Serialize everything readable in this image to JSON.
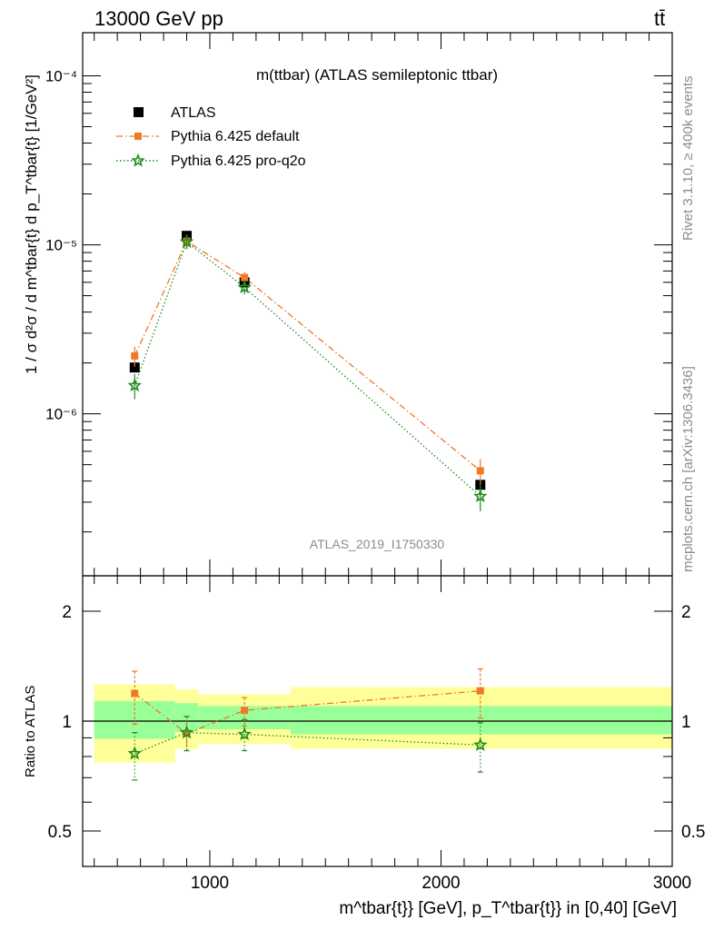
{
  "header": {
    "energy_label": "13000 GeV pp",
    "process_label": "tt̄"
  },
  "side_labels": {
    "rivet": "Rivet 3.1.10, ≥ 400k events",
    "source": "mcplots.cern.ch [arXiv:1306.3436]"
  },
  "chart_data": [
    {
      "type": "scatter",
      "title": "m(ttbar) (ATLAS semileptonic ttbar)",
      "analysis_id": "ATLAS_2019_I1750330",
      "xscale": "linear",
      "yscale": "log",
      "xlim": [
        450,
        3000
      ],
      "ylim": [
        1.1e-07,
        0.00018
      ],
      "ylabel": "1 / σ d²σ / d m^tbar{t} d p_T^tbar{t} [1/GeV²]",
      "y_tick_labels": [
        "10⁻⁶",
        "10⁻⁵",
        "10⁻⁴"
      ],
      "y_tick_values": [
        1e-06,
        1e-05,
        0.0001
      ],
      "legend_position": "top-left",
      "series": [
        {
          "name": "ATLAS",
          "color": "#000000",
          "marker": "square",
          "x": [
            675,
            900,
            1150,
            2170
          ],
          "y": [
            1.88e-06,
            1.13e-05,
            6e-06,
            3.8e-07
          ],
          "yerr": [
            8e-08,
            4e-07,
            3e-07,
            2e-08
          ],
          "band_x": [
            [
              500,
              850
            ],
            [
              850,
              950
            ],
            [
              950,
              1350
            ],
            [
              1350,
              3000
            ]
          ]
        },
        {
          "name": "Pythia 6.425 default",
          "color": "#f07828",
          "marker": "square-small",
          "line": "dashdot",
          "x": [
            675,
            900,
            1150,
            2170
          ],
          "y": [
            2.2e-06,
            1.05e-05,
            6.4e-06,
            4.6e-07
          ],
          "yerr": [
            3e-07,
            1e-06,
            5e-07,
            8e-08
          ]
        },
        {
          "name": "Pythia 6.425 pro-q2o",
          "color": "#1e8c1e",
          "marker": "star",
          "line": "dotted",
          "x": [
            675,
            900,
            1150,
            2170
          ],
          "y": [
            1.47e-06,
            1.04e-05,
            5.6e-06,
            3.25e-07
          ],
          "yerr": [
            2.5e-07,
            1e-06,
            5e-07,
            6e-08
          ]
        }
      ]
    },
    {
      "type": "scatter",
      "xscale": "linear",
      "yscale": "log",
      "xlim": [
        450,
        3000
      ],
      "ylim": [
        0.4,
        2.5
      ],
      "ylabel": "Ratio to ATLAS",
      "xlabel": "m^tbar{t}} [GeV], p_T^tbar{t}} in [0,40] [GeV]",
      "x_tick_labels": [
        "1000",
        "2000",
        "3000"
      ],
      "x_tick_values": [
        1000,
        2000,
        3000
      ],
      "y_tick_labels": [
        "0.5",
        "1",
        "2"
      ],
      "y_tick_values": [
        0.5,
        1,
        2
      ],
      "reference_line": 1,
      "bands": [
        {
          "x0": 500,
          "x1": 850,
          "inner": [
            0.895,
            1.135
          ],
          "outer": [
            0.77,
            1.26
          ]
        },
        {
          "x0": 850,
          "x1": 950,
          "inner": [
            0.935,
            1.12
          ],
          "outer": [
            0.84,
            1.22
          ]
        },
        {
          "x0": 950,
          "x1": 1350,
          "inner": [
            0.95,
            1.1
          ],
          "outer": [
            0.865,
            1.185
          ]
        },
        {
          "x0": 1350,
          "x1": 3000,
          "inner": [
            0.92,
            1.1
          ],
          "outer": [
            0.84,
            1.24
          ]
        }
      ],
      "series": [
        {
          "name": "Pythia 6.425 default",
          "color": "#f07828",
          "marker": "square-small",
          "line": "dashdot",
          "x": [
            675,
            900,
            1150,
            2170
          ],
          "y": [
            1.19,
            0.925,
            1.07,
            1.21
          ],
          "ylow": [
            0.98,
            0.83,
            0.97,
            1.02
          ],
          "yhigh": [
            1.37,
            1.03,
            1.16,
            1.39
          ]
        },
        {
          "name": "Pythia 6.425 pro-q2o",
          "color": "#1e8c1e",
          "marker": "star",
          "line": "dotted",
          "x": [
            675,
            900,
            1150,
            2170
          ],
          "y": [
            0.815,
            0.93,
            0.92,
            0.86
          ],
          "ylow": [
            0.69,
            0.83,
            0.83,
            0.725
          ],
          "yhigh": [
            0.93,
            1.03,
            1.01,
            0.99
          ]
        }
      ]
    }
  ]
}
